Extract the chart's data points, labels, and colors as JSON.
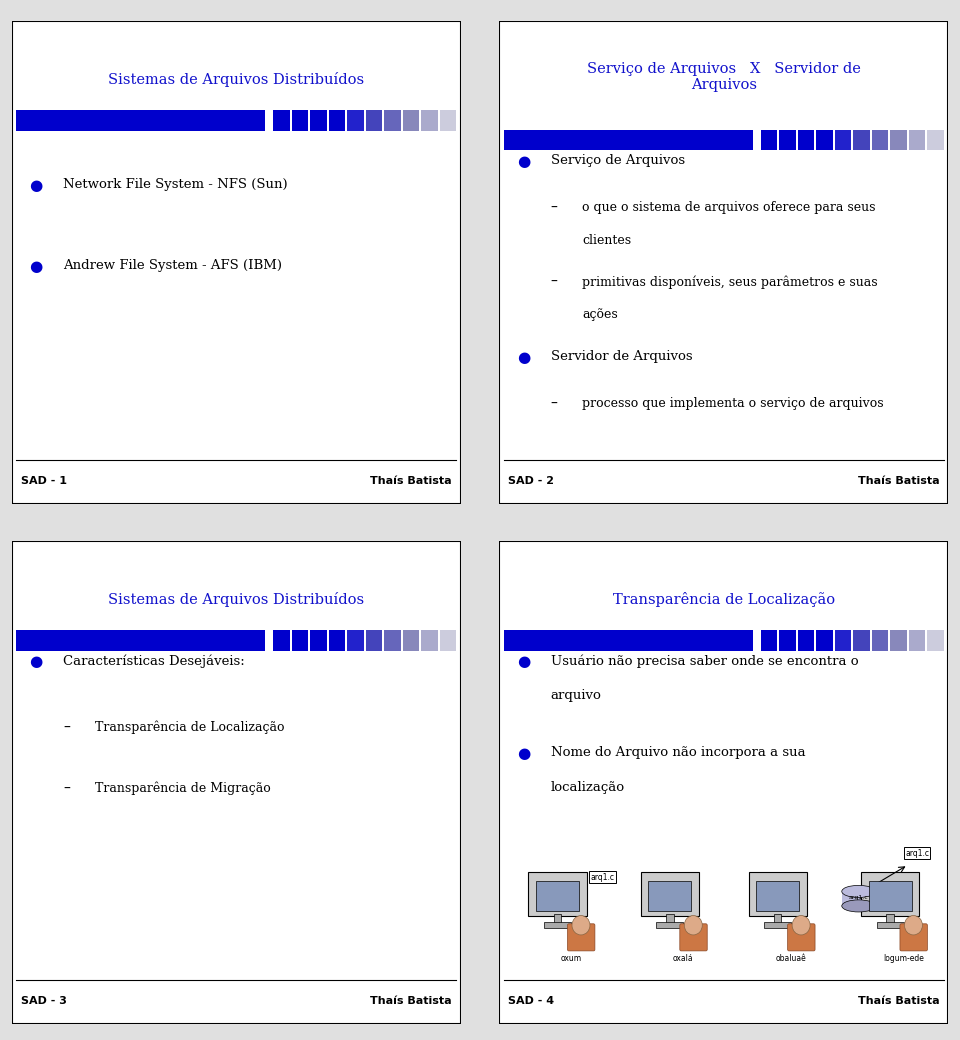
{
  "bg_color": "#e0e0e0",
  "title_color": "#1111cc",
  "text_color": "#000000",
  "bullet_color": "#0000cc",
  "footer_color": "#000000",
  "bar_blocks": [
    "#0000cc",
    "#0000cc",
    "#0000cc",
    "#0000cc",
    "#2222cc",
    "#4444bb",
    "#6666bb",
    "#8888bb",
    "#aaaacc",
    "#ccccdd"
  ],
  "slides": [
    {
      "title": "Sistemas de Arquivos Distribuídos",
      "footer_left": "SAD - 1",
      "footer_right": "Thaís Batista",
      "content": [
        {
          "type": "gap",
          "size": 0.09
        },
        {
          "type": "bullet1",
          "text": "Network File System - NFS (Sun)"
        },
        {
          "type": "gap",
          "size": 0.07
        },
        {
          "type": "bullet1",
          "text": "Andrew File System - AFS (IBM)"
        }
      ]
    },
    {
      "title": "Serviço de Arquivos   X   Servidor de\nArquivos",
      "footer_left": "SAD - 2",
      "footer_right": "Thaís Batista",
      "content": [
        {
          "type": "bullet1",
          "text": "Serviço de Arquivos"
        },
        {
          "type": "bullet2",
          "text": "o que o sistema de arquivos oferece para seus\nclientes"
        },
        {
          "type": "bullet2",
          "text": "primitivas disponíveis, seus parâmetros e suas\nações"
        },
        {
          "type": "bullet1",
          "text": "Servidor de Arquivos"
        },
        {
          "type": "bullet2",
          "text": "processo que implementa o serviço de arquivos"
        }
      ]
    },
    {
      "title": "Sistemas de Arquivos Distribuídos",
      "footer_left": "SAD - 3",
      "footer_right": "Thaís Batista",
      "content": [
        {
          "type": "bullet1",
          "text": "Características Desejáveis:"
        },
        {
          "type": "gap",
          "size": 0.04
        },
        {
          "type": "bullet2",
          "text": "Transparência de Localização"
        },
        {
          "type": "gap",
          "size": 0.04
        },
        {
          "type": "bullet2",
          "text": "Transparência de Migração"
        }
      ]
    },
    {
      "title": "Transparência de Localização",
      "footer_left": "SAD - 4",
      "footer_right": "Thaís Batista",
      "content": [
        {
          "type": "bullet1",
          "text": "Usuário não precisa saber onde se encontra o\narquivo"
        },
        {
          "type": "gap",
          "size": 0.02
        },
        {
          "type": "bullet1",
          "text": "Nome do Arquivo não incorpora a sua\nlocalização"
        },
        {
          "type": "diagram",
          "text": ""
        }
      ]
    }
  ]
}
